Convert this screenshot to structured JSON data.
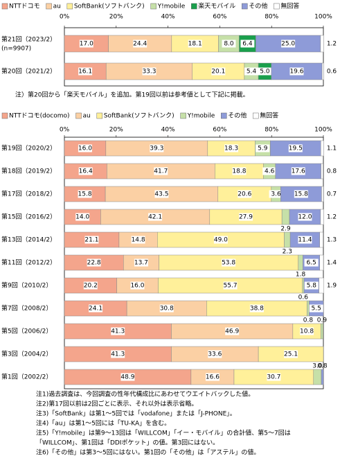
{
  "chart_data": [
    {
      "type": "stacked-bar-horizontal",
      "categories": [
        "第21回（2023/2）",
        "第20回（2021/2）"
      ],
      "sample_size": "(n=9907)",
      "xlim": [
        0,
        100
      ],
      "xticks": [
        {
          "value": 0,
          "label": "0%"
        },
        {
          "value": 20,
          "label": "20%"
        },
        {
          "value": 40,
          "label": "40%"
        },
        {
          "value": 60,
          "label": "60%"
        },
        {
          "value": 80,
          "label": "80%"
        },
        {
          "value": 100,
          "label": "100%"
        }
      ],
      "series": [
        {
          "name": "NTTドコモ",
          "color": "#f4a58c",
          "values": [
            17.0,
            16.1
          ],
          "value_labels": [
            "17.0",
            "16.1"
          ]
        },
        {
          "name": "au",
          "color": "#fbd0a4",
          "values": [
            24.4,
            33.3
          ],
          "value_labels": [
            "24.4",
            "33.3"
          ]
        },
        {
          "name": "SoftBank(ソフトバンク)",
          "color": "#fff09a",
          "values": [
            18.1,
            20.1
          ],
          "value_labels": [
            "18.1",
            "20.1"
          ]
        },
        {
          "name": "Y!mobile",
          "color": "#c6e0a8",
          "values": [
            8.0,
            5.4
          ],
          "value_labels": [
            "8.0",
            "5.4"
          ]
        },
        {
          "name": "楽天モバイル",
          "color": "#1a9f4c",
          "values": [
            6.4,
            5.0
          ],
          "value_labels": [
            "6.4",
            "5.0"
          ]
        },
        {
          "name": "その他",
          "color": "#8e9bd8",
          "values": [
            25.0,
            19.6
          ],
          "value_labels": [
            "25.0",
            "19.6"
          ]
        },
        {
          "name": "無回答",
          "color": "#ffffff",
          "values": [
            1.2,
            0.6
          ],
          "value_labels": [
            "1.2",
            "0.6"
          ]
        }
      ],
      "annotation": "注）第20回から「楽天モバイル」を追加。第19回以前は参考値として下記に掲載。"
    },
    {
      "type": "stacked-bar-horizontal",
      "categories": [
        "第19回（2020/2）",
        "第18回（2019/2）",
        "第17回（2018/2）",
        "第15回（2016/2）",
        "第13回（2014/2）",
        "第11回（2012/2）",
        "第9回（2010/2）",
        "第7回（2008/2）",
        "第5回（2006/2）",
        "第3回（2004/2）",
        "第1回（2002/2）"
      ],
      "xlim": [
        0,
        100
      ],
      "xticks": [
        {
          "value": 0,
          "label": "0%"
        },
        {
          "value": 20,
          "label": "20%"
        },
        {
          "value": 40,
          "label": "40%"
        },
        {
          "value": 60,
          "label": "60%"
        },
        {
          "value": 80,
          "label": "80%"
        },
        {
          "value": 100,
          "label": "100%"
        }
      ],
      "series": [
        {
          "name": "NTTドコモ(docomo)",
          "color": "#f4a58c",
          "values": [
            16.0,
            16.4,
            15.8,
            14.0,
            21.1,
            22.8,
            20.2,
            24.1,
            41.3,
            41.3,
            48.9
          ],
          "value_labels": [
            "16.0",
            "16.4",
            "15.8",
            "14.0",
            "21.1",
            "22.8",
            "20.2",
            "24.1",
            "41.3",
            "41.3",
            "48.9"
          ]
        },
        {
          "name": "au",
          "color": "#fbd0a4",
          "values": [
            39.3,
            41.7,
            43.5,
            42.1,
            14.8,
            13.7,
            16.0,
            30.8,
            46.9,
            33.6,
            16.6
          ],
          "value_labels": [
            "39.3",
            "41.7",
            "43.5",
            "42.1",
            "14.8",
            "13.7",
            "16.0",
            "30.8",
            "46.9",
            "33.6",
            "16.6"
          ]
        },
        {
          "name": "SoftBank(ソフトバンク)",
          "color": "#fff09a",
          "values": [
            18.3,
            18.8,
            20.6,
            27.9,
            49.0,
            53.8,
            55.7,
            38.8,
            10.8,
            25.1,
            30.7
          ],
          "value_labels": [
            "18.3",
            "18.8",
            "20.6",
            "27.9",
            "49.0",
            "53.8",
            "55.7",
            "38.8",
            "10.8",
            "25.1",
            "30.7"
          ]
        },
        {
          "name": "Y!mobile",
          "color": "#c6e0a8",
          "values": [
            5.9,
            4.6,
            3.6,
            2.9,
            2.3,
            1.8,
            0.6,
            0.8,
            0.9,
            null,
            3.0
          ],
          "value_labels": [
            "5.9",
            "4.6",
            "3.6",
            "2.9",
            "2.3",
            "1.8",
            "0.6",
            "0.8",
            "0.9",
            null,
            "3.0"
          ]
        },
        {
          "name": "その他",
          "color": "#8e9bd8",
          "values": [
            19.5,
            17.6,
            15.8,
            12.0,
            11.4,
            6.5,
            5.8,
            5.5,
            null,
            null,
            0.8
          ],
          "value_labels": [
            "19.5",
            "17.6",
            "15.8",
            "12.0",
            "11.4",
            "6.5",
            "5.8",
            "5.5",
            null,
            null,
            "0.8"
          ]
        },
        {
          "name": "無回答",
          "color": "#ffffff",
          "values": [
            1.1,
            0.8,
            0.7,
            1.2,
            1.3,
            1.4,
            1.9,
            null,
            null,
            null,
            null
          ],
          "value_labels": [
            "1.1",
            "0.8",
            "0.7",
            "1.2",
            "1.3",
            "1.4",
            "1.9",
            null,
            null,
            null,
            null
          ]
        }
      ]
    }
  ],
  "footnotes": [
    "注1)過去調査は、今回調査の性年代構成比にあわせてウエイトバックした値。",
    "注2)第17回以前は2回ごとに表示、それ以外は表示省略。",
    "注3)「SoftBank」は第1〜5回では「vodafone」または「J-PHONE」。",
    "注4)「au」は第1〜5回には「TU-KA」を含む。",
    "注5)「Y!mobile」は第9〜13回は「WILLCOM」「イー・モバイル」の合計値、第5〜7回は",
    "「WILLCOM」、第1回は「DDIポケット」の値。第3回にはない。",
    "注6)「その他」は第3〜5回にはない。第1回の「その他」は「アステル」の値。"
  ]
}
